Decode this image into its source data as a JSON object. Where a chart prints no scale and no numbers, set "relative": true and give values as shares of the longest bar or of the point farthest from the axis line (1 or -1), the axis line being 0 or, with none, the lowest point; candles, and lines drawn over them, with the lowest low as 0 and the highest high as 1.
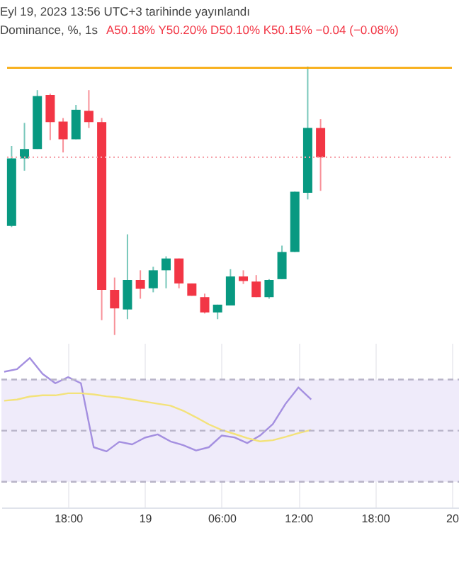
{
  "chart_data": [
    {
      "type": "candlestick",
      "title": "Dominance, %, 1s",
      "annotations": [
        "Eyl 19, 2023 13:56 UTC+3 tarihinde yayınlandı",
        "A50.18% Y50.20% D50.10% K50.15% −0.04 (−0.08%)"
      ],
      "relative": true,
      "tick_labels": false,
      "categories": [
        null,
        null,
        null,
        null,
        null,
        null,
        null,
        null,
        null,
        null,
        null,
        null,
        null,
        null,
        null,
        null,
        null,
        null,
        null,
        null,
        null,
        null,
        null,
        null,
        null
      ],
      "ohlc": [
        [
          0.406,
          0.704,
          0.402,
          0.658
        ],
        [
          0.658,
          0.79,
          0.612,
          0.693
        ],
        [
          0.693,
          0.912,
          0.693,
          0.89
        ],
        [
          0.894,
          0.899,
          0.726,
          0.793
        ],
        [
          0.795,
          0.808,
          0.68,
          0.729
        ],
        [
          0.729,
          0.857,
          0.729,
          0.839
        ],
        [
          0.835,
          0.912,
          0.771,
          0.793
        ],
        [
          0.793,
          0.808,
          0.055,
          0.168
        ],
        [
          0.168,
          0.214,
          0,
          0.099
        ],
        [
          0.095,
          0.375,
          0.059,
          0.205
        ],
        [
          0.205,
          0.241,
          0.135,
          0.172
        ],
        [
          0.174,
          0.254,
          0.159,
          0.241
        ],
        [
          0.241,
          0.293,
          0.174,
          0.285
        ],
        [
          0.285,
          0.285,
          0.174,
          0.192
        ],
        [
          0.192,
          0.192,
          0.146,
          0.146
        ],
        [
          0.141,
          0.154,
          0.08,
          0.084
        ],
        [
          0.084,
          0.113,
          0.059,
          0.113
        ],
        [
          0.11,
          0.245,
          0.11,
          0.218
        ],
        [
          0.218,
          0.241,
          0.19,
          0.201
        ],
        [
          0.199,
          0.223,
          0.141,
          0.141
        ],
        [
          0.141,
          0.208,
          0.135,
          0.205
        ],
        [
          0.208,
          0.333,
          0.208,
          0.309
        ],
        [
          0.309,
          0.534,
          0.309,
          0.534
        ],
        [
          0.53,
          1,
          0.505,
          0.771
        ],
        [
          0.771,
          0.804,
          0.537,
          0.662
        ]
      ],
      "colors": [
        "#089981",
        "#089981",
        "#089981",
        "#f23645",
        "#f23645",
        "#089981",
        "#f23645",
        "#f23645",
        "#f23645",
        "#089981",
        "#f23645",
        "#089981",
        "#089981",
        "#f23645",
        "#f23645",
        "#f23645",
        "#089981",
        "#089981",
        "#f23645",
        "#f23645",
        "#089981",
        "#089981",
        "#089981",
        "#089981",
        "#f23645"
      ],
      "ref_lines": [
        {
          "axis": "y",
          "value": 0.995,
          "color": "#f7a600",
          "line_style": "solid"
        },
        {
          "axis": "y",
          "value": 0.662,
          "color": "#f5a3ab",
          "line_style": "dotted"
        }
      ]
    },
    {
      "type": "line",
      "relative": true,
      "tick_labels": "x",
      "grid": "x",
      "x": [
        "2023-09-18T13:00",
        "2023-09-18T14:00",
        "2023-09-18T15:00",
        "2023-09-18T16:00",
        "2023-09-18T17:00",
        "2023-09-18T18:00",
        "2023-09-18T19:00",
        "2023-09-18T20:00",
        "2023-09-18T21:00",
        "2023-09-18T22:00",
        "2023-09-18T23:00",
        "2023-09-19T00:00",
        "2023-09-19T01:00",
        "2023-09-19T02:00",
        "2023-09-19T03:00",
        "2023-09-19T04:00",
        "2023-09-19T05:00",
        "2023-09-19T06:00",
        "2023-09-19T07:00",
        "2023-09-19T08:00",
        "2023-09-19T09:00",
        "2023-09-19T10:00",
        "2023-09-19T11:00",
        "2023-09-19T12:00",
        "2023-09-19T13:00"
      ],
      "series": [
        {
          "color": "#a48fe0",
          "values": [
            0.908,
            0.925,
            1,
            0.894,
            0.831,
            0.872,
            0.831,
            0.403,
            0.375,
            0.439,
            0.422,
            0.467,
            0.489,
            0.442,
            0.417,
            0.381,
            0.403,
            0.481,
            0.469,
            0.431,
            0.481,
            0.558,
            0.694,
            0.803,
            0.722
          ]
        },
        {
          "color": "#f3e27a",
          "values": [
            0.714,
            0.722,
            0.742,
            0.75,
            0.75,
            0.764,
            0.764,
            0.756,
            0.744,
            0.736,
            0.722,
            0.708,
            0.694,
            0.681,
            0.647,
            0.603,
            0.556,
            0.519,
            0.492,
            0.464,
            0.442,
            0.45,
            0.472,
            0.497,
            0.519
          ]
        }
      ],
      "xlim": [
        "2023-09-18T12:47",
        "2023-09-20T00:40"
      ],
      "xticks": [
        {
          "value": "2023-09-18T18:00",
          "label": "18:00"
        },
        {
          "value": "2023-09-19T00:00",
          "label": "19"
        },
        {
          "value": "2023-09-19T06:00",
          "label": "06:00"
        },
        {
          "value": "2023-09-19T12:00",
          "label": "12:00"
        },
        {
          "value": "2023-09-19T18:00",
          "label": "18:00"
        },
        {
          "value": "2023-09-20T00:00",
          "label": "20"
        }
      ],
      "bands": [
        {
          "axis": "y",
          "from": 0.172,
          "to": 0.856,
          "color": "#efebfa"
        }
      ],
      "ref_lines": [
        {
          "axis": "y",
          "value": 0.856,
          "color": "#b8b4c8",
          "line_style": "dashed"
        },
        {
          "axis": "y",
          "value": 0.514,
          "color": "#b8b4c8",
          "line_style": "dashed"
        },
        {
          "axis": "y",
          "value": 0.172,
          "color": "#b8b4c8",
          "line_style": "dashed"
        }
      ]
    }
  ]
}
